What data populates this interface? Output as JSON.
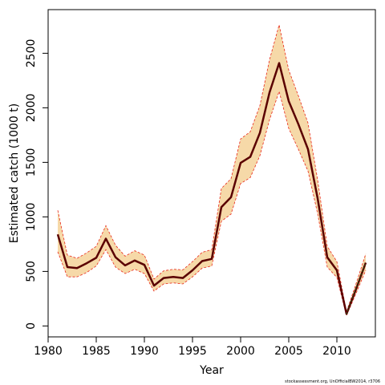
{
  "chart_data": {
    "type": "line",
    "title": "",
    "xlabel": "Year",
    "ylabel": "Estimated catch (1000 t)",
    "xlim": [
      1980,
      2014
    ],
    "ylim": [
      -100,
      2900
    ],
    "x_ticks": [
      1980,
      1985,
      1990,
      1995,
      2000,
      2005,
      2010
    ],
    "y_ticks": [
      0,
      500,
      1000,
      1500,
      2000,
      2500
    ],
    "grid": false,
    "legend": "none",
    "colors": {
      "estimate_line": "#5a0000",
      "band_fill": "#f6d9a8",
      "band_border": "#e8291c",
      "observed_segment": "#1a6b1a"
    },
    "series": [
      {
        "values_x": [
          1981,
          1982,
          1983,
          1984,
          1985,
          1986,
          1987,
          1988,
          1989,
          1990,
          1991,
          1992,
          1993,
          1994,
          1995,
          1996,
          1997,
          1998,
          1999,
          2000,
          2001,
          2002,
          2003,
          2004,
          2005,
          2006,
          2007,
          2008,
          2009,
          2010,
          2011,
          2012,
          2013
        ],
        "estimate": [
          840,
          540,
          530,
          575,
          625,
          800,
          630,
          555,
          600,
          560,
          370,
          440,
          450,
          440,
          510,
          595,
          615,
          1090,
          1180,
          1495,
          1550,
          1770,
          2140,
          2410,
          2060,
          1850,
          1620,
          1170,
          630,
          510,
          110,
          340,
          580
        ],
        "lower": [
          680,
          450,
          450,
          490,
          550,
          700,
          540,
          480,
          520,
          480,
          320,
          385,
          395,
          385,
          450,
          530,
          550,
          960,
          1025,
          1305,
          1360,
          1560,
          1890,
          2150,
          1810,
          1620,
          1420,
          1030,
          540,
          445,
          95,
          300,
          510
        ],
        "upper": [
          1060,
          650,
          620,
          670,
          730,
          920,
          740,
          640,
          690,
          650,
          430,
          505,
          520,
          515,
          590,
          675,
          700,
          1260,
          1350,
          1715,
          1780,
          2020,
          2440,
          2760,
          2345,
          2110,
          1860,
          1340,
          730,
          590,
          130,
          390,
          660
        ]
      },
      {
        "values_x": [
          2011,
          2012,
          2013
        ],
        "values": [
          110,
          350,
          580
        ]
      }
    ],
    "credit": "stockassessment.org, UnOfficialBW2014, r3706"
  }
}
